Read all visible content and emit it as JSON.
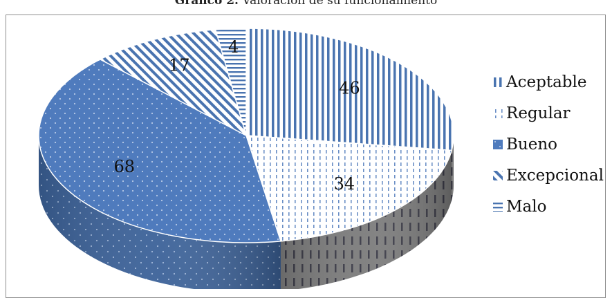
{
  "caption": {
    "prefix": "Gráfico 2.",
    "text": " Valoración de su funcionamiento"
  },
  "chart_data": {
    "type": "pie",
    "title": "Gráfico 2. Valoración de su funcionamiento",
    "categories": [
      "Aceptable",
      "Regular",
      "Bueno",
      "Excepcional",
      "Malo"
    ],
    "values": [
      46,
      34,
      68,
      17,
      4
    ],
    "legend_position": "right",
    "colors": {
      "Aceptable": "#4a74b0",
      "Regular": "#6b8fc6",
      "Bueno": "#4f7bbd",
      "Excepcional": "#4a74b0",
      "Malo": "#4a74b0"
    }
  }
}
